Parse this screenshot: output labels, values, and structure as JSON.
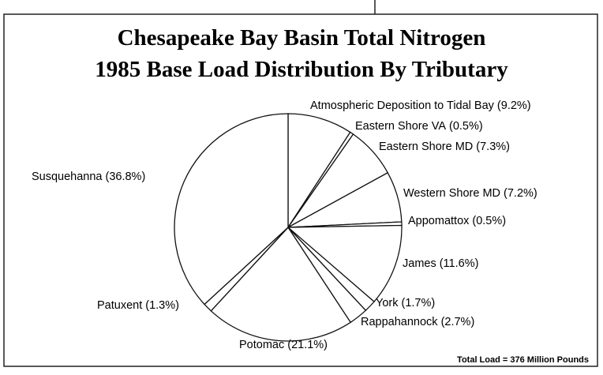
{
  "chart_data": {
    "type": "pie",
    "title": [
      "Chesapeake Bay Basin Total Nitrogen",
      "1985 Base Load Distribution By Tributary"
    ],
    "categories": [
      "Atmospheric Deposition to Tidal Bay",
      "Eastern Shore VA",
      "Eastern Shore MD",
      "Western Shore MD",
      "Appomattox",
      "James",
      "York",
      "Rappahannock",
      "Potomac",
      "Patuxent",
      "Susquehanna"
    ],
    "values": [
      9.2,
      0.5,
      7.3,
      7.2,
      0.5,
      11.6,
      1.7,
      2.7,
      21.1,
      1.3,
      36.8
    ],
    "value_labels": [
      "(9.2%)",
      "(0.5%)",
      "(7.3%)",
      "(7.2%)",
      "(0.5%)",
      "(11.6%)",
      "(1.7%)",
      "(2.7%)",
      "(21.1%)",
      "(1.3%)",
      "(36.8%)"
    ],
    "color": "#ffffff",
    "note": "Total Load = 376 Million Pounds"
  }
}
